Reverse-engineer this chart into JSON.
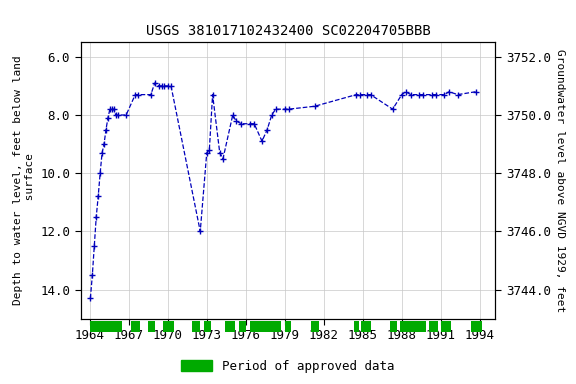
{
  "title": "USGS 381017102432400 SC02204705BBB",
  "ylabel_left": "Depth to water level, feet below land\n surface",
  "ylabel_right": "Groundwater level above NGVD 1929, feet",
  "ylim_left": [
    15.0,
    5.5
  ],
  "ylim_right": [
    3743.0,
    3752.5
  ],
  "xlim": [
    1963.3,
    1995.2
  ],
  "xticks": [
    1964,
    1967,
    1970,
    1973,
    1976,
    1979,
    1982,
    1985,
    1988,
    1991,
    1994
  ],
  "yticks_left": [
    6.0,
    8.0,
    10.0,
    12.0,
    14.0
  ],
  "yticks_right": [
    3752.0,
    3750.0,
    3748.0,
    3746.0,
    3744.0
  ],
  "data_x": [
    1964.05,
    1964.2,
    1964.35,
    1964.5,
    1964.65,
    1964.8,
    1964.95,
    1965.1,
    1965.25,
    1965.4,
    1965.55,
    1965.7,
    1965.85,
    1966.0,
    1966.15,
    1966.8,
    1967.5,
    1967.75,
    1968.7,
    1969.0,
    1969.3,
    1969.55,
    1969.75,
    1970.0,
    1970.25,
    1972.5,
    1973.0,
    1973.2,
    1973.45,
    1974.0,
    1974.25,
    1975.0,
    1975.25,
    1975.65,
    1976.3,
    1976.65,
    1977.25,
    1977.65,
    1978.0,
    1978.3,
    1979.0,
    1979.3,
    1981.3,
    1984.5,
    1984.8,
    1985.3,
    1985.6,
    1987.3,
    1988.0,
    1988.3,
    1988.7,
    1989.3,
    1989.65,
    1990.3,
    1990.65,
    1991.25,
    1991.65,
    1992.3,
    1993.7
  ],
  "data_y": [
    14.3,
    13.5,
    12.5,
    11.5,
    10.8,
    10.0,
    9.3,
    9.0,
    8.5,
    8.1,
    7.8,
    7.8,
    7.8,
    8.0,
    8.0,
    8.0,
    7.3,
    7.3,
    7.3,
    6.9,
    7.0,
    7.0,
    7.0,
    7.0,
    7.0,
    12.0,
    9.3,
    9.2,
    7.3,
    9.3,
    9.5,
    8.0,
    8.2,
    8.3,
    8.3,
    8.3,
    8.9,
    8.5,
    8.0,
    7.8,
    7.8,
    7.8,
    7.7,
    7.3,
    7.3,
    7.3,
    7.3,
    7.8,
    7.3,
    7.2,
    7.3,
    7.3,
    7.3,
    7.3,
    7.3,
    7.3,
    7.2,
    7.3,
    7.2
  ],
  "green_bars": [
    [
      1964.0,
      1966.5
    ],
    [
      1967.2,
      1967.9
    ],
    [
      1968.5,
      1969.0
    ],
    [
      1969.6,
      1970.5
    ],
    [
      1971.9,
      1972.5
    ],
    [
      1972.8,
      1973.3
    ],
    [
      1974.4,
      1975.2
    ],
    [
      1975.5,
      1976.0
    ],
    [
      1976.3,
      1978.7
    ],
    [
      1979.0,
      1979.5
    ],
    [
      1981.0,
      1981.6
    ],
    [
      1984.3,
      1984.7
    ],
    [
      1984.9,
      1985.6
    ],
    [
      1987.1,
      1987.6
    ],
    [
      1987.9,
      1989.9
    ],
    [
      1990.1,
      1990.8
    ],
    [
      1991.0,
      1991.8
    ],
    [
      1993.3,
      1994.2
    ]
  ],
  "line_color": "#0000bb",
  "marker_color": "#0000bb",
  "green_color": "#00aa00",
  "bg_color": "#ffffff",
  "grid_color": "#c8c8c8",
  "title_fontsize": 10,
  "label_fontsize": 8,
  "tick_fontsize": 9
}
